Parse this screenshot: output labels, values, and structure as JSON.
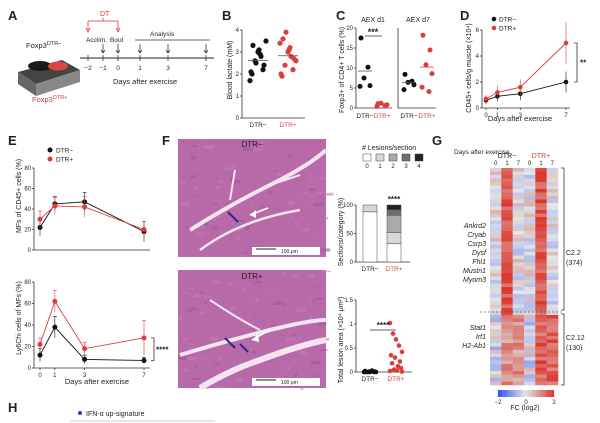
{
  "panels": {
    "A": {
      "letter": "A",
      "label_top": "Foxp3",
      "label_top_sup": "DTR−",
      "label_bottom": "Foxp3",
      "label_bottom_sup": "DTR+",
      "dt": "DT",
      "acclim": "Acclim.",
      "bout": "Bout",
      "analysis": "Analysis",
      "ticks": [
        "−2",
        "−1",
        "0",
        "1",
        "3",
        "7"
      ],
      "xlabel": "Days after exercise"
    },
    "B": {
      "letter": "B",
      "ylabel": "Blood lactate (mM)",
      "yticks": [
        "0",
        "1",
        "2",
        "3",
        "4"
      ],
      "groups": [
        "DTR−",
        "DTR+"
      ],
      "dtr_neg": [
        2.1,
        2.6,
        2.9,
        2.4,
        3.3,
        3.0,
        2.2,
        1.7,
        2.8,
        3.5,
        2.5,
        2.0,
        3.1
      ],
      "dtr_pos": [
        2.0,
        2.4,
        3.2,
        2.7,
        3.6,
        3.0,
        2.2,
        3.4,
        2.8,
        2.6,
        3.9,
        1.9,
        3.1
      ]
    },
    "C": {
      "letter": "C",
      "ylabel": "Foxp3+ of CD4+ T cells (%)",
      "yticks": [
        "0",
        "5",
        "10",
        "15",
        "20"
      ],
      "sub1": {
        "title": "AEX d1",
        "sig": "***",
        "dtr_neg": [
          17.5,
          10.2,
          7.5,
          5.6,
          5.4
        ],
        "dtr_pos": [
          1.1,
          0.6,
          1.2,
          0.8,
          0.4
        ]
      },
      "sub2": {
        "title": "AEX d7",
        "sig": "",
        "dtr_neg": [
          8.4,
          6.7,
          6.4,
          5.8,
          4.6
        ],
        "dtr_pos": [
          18.2,
          14.5,
          10.8,
          8.6,
          5.2,
          4.1
        ]
      },
      "groups": [
        "DTR−",
        "DTR+"
      ]
    },
    "D": {
      "letter": "D",
      "ylabel": "CD45+ cells/g muscle (×10⁴)",
      "yticks": [
        "0",
        "2",
        "4",
        "6"
      ],
      "xticks": [
        "0",
        "1",
        "3",
        "7"
      ],
      "xlabel": "Days after exercise",
      "legend": [
        "DTR−",
        "DTR+"
      ],
      "sig": "**",
      "dtr_neg": [
        0.6,
        0.9,
        1.1,
        2.0
      ],
      "dtr_pos": [
        0.7,
        1.2,
        1.6,
        5.0
      ],
      "err_neg": [
        0.3,
        0.4,
        0.5,
        0.8
      ],
      "err_pos": [
        0.3,
        0.5,
        0.6,
        1.6
      ]
    },
    "E": {
      "letter": "E",
      "top_ylabel": "MFs of CD45+ cells (%)",
      "top_yticks": [
        "0",
        "20",
        "40",
        "60",
        "80"
      ],
      "bot_ylabel": "Ly6Chi cells of MFs (%)",
      "bot_yticks": [
        "0",
        "20",
        "40",
        "60",
        "80"
      ],
      "xticks": [
        "0",
        "1",
        "3",
        "7"
      ],
      "xlabel": "Days after exercise",
      "legend": [
        "DTR−",
        "DTR+"
      ],
      "sig": "****",
      "top_neg": [
        22,
        45,
        47,
        18
      ],
      "top_pos": [
        30,
        43,
        42,
        20
      ],
      "top_err_neg": [
        8,
        7,
        9,
        10
      ],
      "top_err_pos": [
        8,
        8,
        10,
        8
      ],
      "bot_neg": [
        12,
        38,
        8,
        7
      ],
      "bot_pos": [
        22,
        62,
        18,
        28
      ],
      "bot_err_neg": [
        6,
        10,
        4,
        3
      ],
      "bot_err_pos": [
        6,
        10,
        6,
        16
      ]
    },
    "F": {
      "letter": "F",
      "img1_label": "DTR−",
      "img2_label": "DTR+",
      "scale": "100 μm",
      "legend_title": "# Lesions/section",
      "legend_items": [
        "0",
        "1",
        "2",
        "3",
        "4"
      ],
      "bar_ylabel": "Sections/category (%)",
      "bar_yticks": [
        "0",
        "50",
        "100"
      ],
      "bar_groups": [
        "DTR−",
        "DTR+"
      ],
      "bar_sig": "****",
      "bar_dtr_neg": [
        88,
        12,
        0,
        0,
        0
      ],
      "bar_dtr_pos": [
        32,
        20,
        30,
        10,
        8
      ],
      "area_ylabel": "Total lesion area (×10⁴ μm²)",
      "area_yticks": [
        "0",
        "0.5",
        "1",
        "1.5"
      ],
      "area_groups": [
        "DTR−",
        "DTR+"
      ],
      "area_sig": "****",
      "area_neg": [
        0,
        0,
        0,
        0.01,
        0,
        0.02,
        0.01,
        0,
        0,
        0.03,
        0.01,
        0
      ],
      "area_pos": [
        1.02,
        0.8,
        0.68,
        0.55,
        0.42,
        0.35,
        0.3,
        0.22,
        0.18,
        0.12,
        0.08,
        0.05,
        0.03,
        0.02,
        0.01
      ]
    },
    "G": {
      "letter": "G",
      "days_label": "Days after exercise",
      "groups": [
        "DTR−",
        "DTR+"
      ],
      "cols": [
        "0",
        "1",
        "7",
        "0",
        "1",
        "7"
      ],
      "genes_top": [
        "Ankrd2",
        "Cryab",
        "Csrp3",
        "Dysf",
        "Fhl1",
        "Mustn1",
        "Myom3"
      ],
      "genes_bottom": [
        "Stat1",
        "Irf1",
        "H2-Ab1"
      ],
      "cluster1": "C2.2",
      "cluster1_n": "(374)",
      "cluster2": "C2.12",
      "cluster2_n": "(130)",
      "scale_ticks": [
        "−2",
        "0",
        "2"
      ],
      "scale_label": "FC (log2)"
    },
    "H": {
      "letter": "H",
      "legend": "IFN-α up-signature"
    }
  },
  "colors": {
    "neg": "#111111",
    "pos": "#e03a3a",
    "he": "#b55aa3",
    "heLight": "#e0b8dc"
  }
}
